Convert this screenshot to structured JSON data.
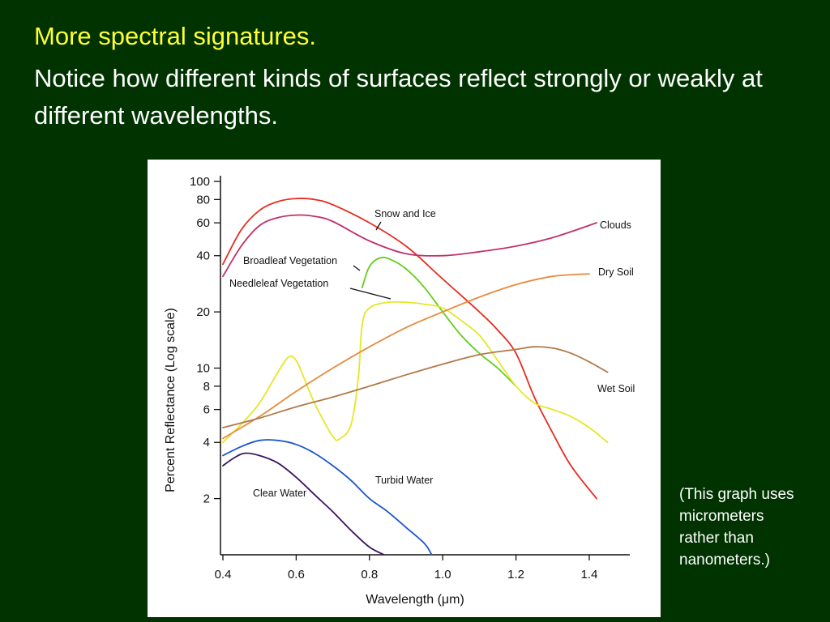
{
  "slide": {
    "title": "More spectral signatures.",
    "subtitle": "Notice how different kinds of surfaces reflect strongly or weakly at different wavelengths.",
    "note": "(This graph uses micrometers rather than nanometers.)"
  },
  "chart_data": {
    "type": "line",
    "xlabel": "Wavelength (μm)",
    "ylabel": "Percent Reflectance (Log scale)",
    "xlim": [
      0.4,
      1.5
    ],
    "ylim": [
      1,
      100
    ],
    "y_scale": "log",
    "grid": false,
    "x_ticks": [
      0.4,
      0.6,
      0.8,
      1.0,
      1.2,
      1.4
    ],
    "x_tick_labels": [
      "0.4",
      "0.6",
      "0.8",
      "1.0",
      "1.2",
      "1.4"
    ],
    "y_ticks": [
      2,
      4,
      6,
      8,
      10,
      20,
      40,
      60,
      80,
      100
    ],
    "y_tick_labels": [
      "2",
      "4",
      "6",
      "8",
      "10",
      "20",
      "40",
      "60",
      "80",
      "100"
    ],
    "series": [
      {
        "name": "Snow and Ice",
        "color": "#e62c1e",
        "x": [
          0.4,
          0.45,
          0.5,
          0.55,
          0.6,
          0.65,
          0.7,
          0.8,
          0.9,
          1.0,
          1.1,
          1.15,
          1.2,
          1.25,
          1.3,
          1.35,
          1.42
        ],
        "y": [
          36,
          55,
          70,
          78,
          81,
          80,
          75,
          60,
          45,
          30,
          20,
          16,
          12,
          7,
          4.5,
          3,
          2
        ]
      },
      {
        "name": "Clouds",
        "color": "#c0306a",
        "x": [
          0.4,
          0.45,
          0.5,
          0.55,
          0.6,
          0.65,
          0.7,
          0.8,
          0.9,
          1.0,
          1.1,
          1.2,
          1.3,
          1.42
        ],
        "y": [
          31,
          45,
          58,
          64,
          66,
          65,
          61,
          48,
          41,
          40,
          42,
          45,
          50,
          60
        ]
      },
      {
        "name": "Broadleaf Vegetation",
        "color": "#66cc22",
        "x": [
          0.78,
          0.8,
          0.83,
          0.86,
          0.9,
          0.95,
          1.0,
          1.05,
          1.1,
          1.15,
          1.2
        ],
        "y": [
          27,
          35,
          39,
          38,
          34,
          27,
          20,
          15,
          12,
          10,
          8
        ]
      },
      {
        "name": "Needleleaf Vegetation",
        "color": "#e6e628",
        "x": [
          0.4,
          0.45,
          0.5,
          0.55,
          0.58,
          0.6,
          0.62,
          0.65,
          0.7,
          0.72,
          0.75,
          0.77,
          0.78,
          0.8,
          0.85,
          0.9,
          0.95,
          1.0,
          1.05,
          1.1,
          1.15,
          1.2,
          1.25,
          1.3,
          1.35,
          1.4,
          1.45
        ],
        "y": [
          4,
          5,
          6.5,
          9.5,
          11.5,
          11,
          9,
          6.5,
          4.3,
          4.2,
          5,
          9,
          17,
          21,
          22.5,
          22.5,
          22,
          21,
          18,
          15,
          11,
          8,
          6.5,
          6,
          5.5,
          4.8,
          4
        ]
      },
      {
        "name": "Dry Soil",
        "color": "#e88a3c",
        "x": [
          0.4,
          0.5,
          0.6,
          0.7,
          0.8,
          0.9,
          1.0,
          1.1,
          1.2,
          1.3,
          1.4
        ],
        "y": [
          4.2,
          5.5,
          7.5,
          10,
          13,
          16.5,
          20,
          24,
          28,
          31,
          32
        ]
      },
      {
        "name": "Wet Soil",
        "color": "#b07a48",
        "x": [
          0.4,
          0.5,
          0.6,
          0.7,
          0.8,
          0.9,
          1.0,
          1.1,
          1.2,
          1.25,
          1.3,
          1.35,
          1.4,
          1.45
        ],
        "y": [
          4.8,
          5.4,
          6.2,
          7,
          8,
          9.2,
          10.5,
          11.8,
          12.6,
          13,
          12.8,
          12,
          10.8,
          9.5
        ]
      },
      {
        "name": "Turbid Water",
        "color": "#1c55cc",
        "x": [
          0.4,
          0.45,
          0.5,
          0.55,
          0.6,
          0.65,
          0.7,
          0.75,
          0.8,
          0.85,
          0.9,
          0.95,
          0.97
        ],
        "y": [
          3.4,
          3.8,
          4.1,
          4.1,
          3.9,
          3.5,
          3,
          2.5,
          2,
          1.7,
          1.4,
          1.15,
          1
        ]
      },
      {
        "name": "Clear Water",
        "color": "#3a1460",
        "x": [
          0.4,
          0.43,
          0.46,
          0.5,
          0.55,
          0.6,
          0.65,
          0.7,
          0.75,
          0.8,
          0.84
        ],
        "y": [
          3,
          3.3,
          3.5,
          3.4,
          3.1,
          2.6,
          2.1,
          1.7,
          1.35,
          1.1,
          1
        ]
      }
    ]
  }
}
